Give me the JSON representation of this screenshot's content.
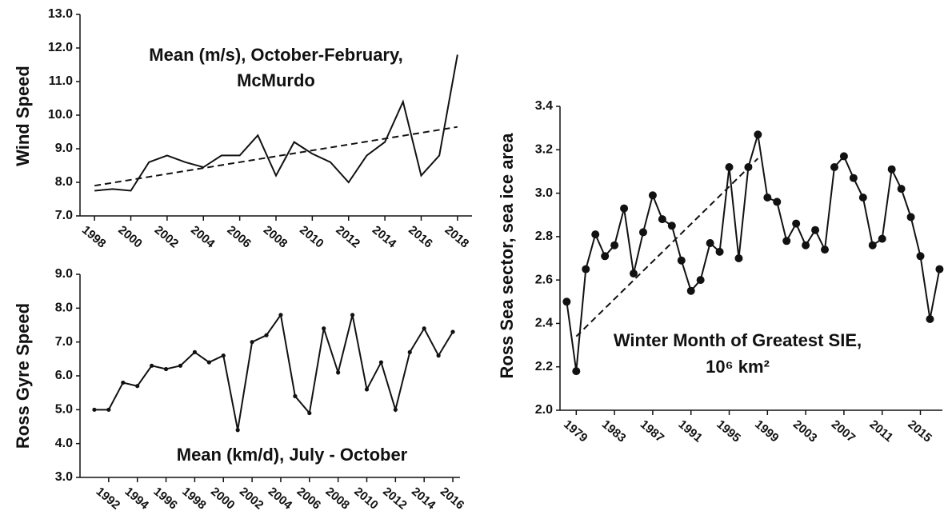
{
  "chart_data": [
    {
      "type": "line",
      "y_label": "Wind Speed",
      "annotation": [
        "Mean (m/s), October-February,",
        "McMurdo"
      ],
      "x": [
        1998,
        1999,
        2000,
        2001,
        2002,
        2003,
        2004,
        2005,
        2006,
        2007,
        2008,
        2009,
        2010,
        2011,
        2012,
        2013,
        2014,
        2015,
        2016,
        2017,
        2018
      ],
      "values": [
        7.75,
        7.8,
        7.75,
        8.6,
        8.8,
        8.6,
        8.45,
        8.8,
        8.8,
        9.4,
        8.2,
        9.2,
        8.85,
        8.6,
        8.0,
        8.8,
        9.2,
        10.4,
        8.2,
        8.8,
        11.8
      ],
      "trend": {
        "x": [
          1998,
          2018
        ],
        "values": [
          7.9,
          9.65
        ]
      },
      "color": "#111111",
      "markers": false,
      "xlim": [
        1997.2,
        2018.8
      ],
      "xticks": [
        1998,
        2000,
        2002,
        2004,
        2006,
        2008,
        2010,
        2012,
        2014,
        2016,
        2018
      ],
      "ylim": [
        7,
        13
      ],
      "yticks": [
        {
          "value": 7,
          "label": "7.0"
        },
        {
          "value": 8,
          "label": "8.0"
        },
        {
          "value": 9,
          "label": "9.0"
        },
        {
          "value": 10,
          "label": "10.0"
        },
        {
          "value": 11,
          "label": "11.0"
        },
        {
          "value": 12,
          "label": "12.0"
        },
        {
          "value": 13,
          "label": "13.0"
        }
      ]
    },
    {
      "type": "line",
      "y_label": "Ross Gyre Speed",
      "annotation": [
        "Mean (km/d), July - October"
      ],
      "x": [
        1991,
        1992,
        1993,
        1994,
        1995,
        1996,
        1997,
        1998,
        1999,
        2000,
        2001,
        2002,
        2003,
        2004,
        2005,
        2006,
        2007,
        2008,
        2009,
        2010,
        2011,
        2012,
        2013,
        2014,
        2015,
        2016
      ],
      "values": [
        5.0,
        5.0,
        5.8,
        5.7,
        6.3,
        6.2,
        6.3,
        6.7,
        6.4,
        6.6,
        4.4,
        7.0,
        7.2,
        7.8,
        5.4,
        4.9,
        7.4,
        6.1,
        7.8,
        5.6,
        6.4,
        5.0,
        6.7,
        7.4,
        6.6,
        7.3
      ],
      "color": "#111111",
      "markers": true,
      "xlim": [
        1990,
        2016.5
      ],
      "xticks": [
        1992,
        1994,
        1996,
        1998,
        2000,
        2002,
        2004,
        2006,
        2008,
        2010,
        2012,
        2014,
        2016
      ],
      "ylim": [
        3,
        9
      ],
      "yticks": [
        {
          "value": 3,
          "label": "3.0"
        },
        {
          "value": 4,
          "label": "4.0"
        },
        {
          "value": 5,
          "label": "5.0"
        },
        {
          "value": 6,
          "label": "6.0"
        },
        {
          "value": 7,
          "label": "7.0"
        },
        {
          "value": 8,
          "label": "8.0"
        },
        {
          "value": 9,
          "label": "9.0"
        }
      ]
    },
    {
      "type": "line",
      "y_label": "Ross Sea sector, sea ice area",
      "annotation": [
        "Winter Month of Greatest SIE,",
        "10⁶ km²"
      ],
      "x": [
        1978,
        1979,
        1980,
        1981,
        1982,
        1983,
        1984,
        1985,
        1986,
        1987,
        1988,
        1989,
        1990,
        1991,
        1992,
        1993,
        1994,
        1995,
        1996,
        1997,
        1998,
        1999,
        2000,
        2001,
        2002,
        2003,
        2004,
        2005,
        2006,
        2007,
        2008,
        2009,
        2010,
        2011,
        2012,
        2013,
        2014,
        2015,
        2016,
        2017
      ],
      "values": [
        2.5,
        2.18,
        2.65,
        2.81,
        2.71,
        2.76,
        2.93,
        2.63,
        2.82,
        2.99,
        2.88,
        2.85,
        2.69,
        2.55,
        2.6,
        2.77,
        2.73,
        3.12,
        2.7,
        3.12,
        3.27,
        2.98,
        2.96,
        2.78,
        2.86,
        2.76,
        2.83,
        2.74,
        3.12,
        3.17,
        3.07,
        2.98,
        2.76,
        2.79,
        3.11,
        3.02,
        2.89,
        2.71,
        2.42,
        2.65
      ],
      "trend": {
        "x": [
          1979,
          1998
        ],
        "values": [
          2.34,
          3.16
        ]
      },
      "color": "#111111",
      "markers": true,
      "xlim": [
        1977.3,
        2017.3
      ],
      "xticks": [
        1979,
        1983,
        1987,
        1991,
        1995,
        1999,
        2003,
        2007,
        2011,
        2015
      ],
      "ylim": [
        2.0,
        3.4
      ],
      "yticks": [
        {
          "value": 2.0,
          "label": "2.0"
        },
        {
          "value": 2.2,
          "label": "2.2"
        },
        {
          "value": 2.4,
          "label": "2.4"
        },
        {
          "value": 2.6,
          "label": "2.6"
        },
        {
          "value": 2.8,
          "label": "2.8"
        },
        {
          "value": 3.0,
          "label": "3.0"
        },
        {
          "value": 3.2,
          "label": "3.2"
        },
        {
          "value": 3.4,
          "label": "3.4"
        }
      ]
    }
  ]
}
